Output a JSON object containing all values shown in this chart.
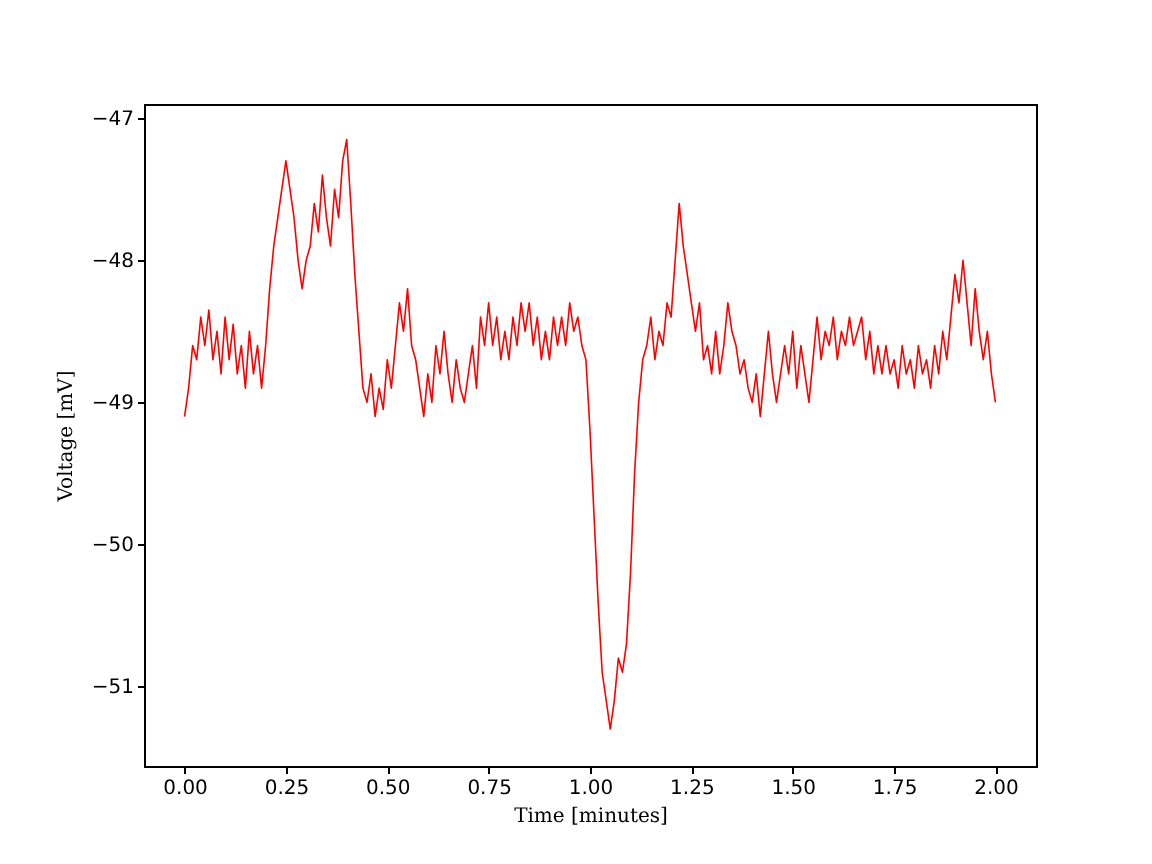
{
  "chart_data": {
    "type": "line",
    "xlabel": "Time [minutes]",
    "ylabel": "Voltage [mV]",
    "xlim": [
      -0.1,
      2.1
    ],
    "ylim": [
      -51.56,
      -46.9
    ],
    "xticks": [
      {
        "value": 0,
        "label": "0.00"
      },
      {
        "value": 0.25,
        "label": "0.25"
      },
      {
        "value": 0.5,
        "label": "0.50"
      },
      {
        "value": 0.75,
        "label": "0.75"
      },
      {
        "value": 1,
        "label": "1.00"
      },
      {
        "value": 1.25,
        "label": "1.25"
      },
      {
        "value": 1.5,
        "label": "1.50"
      },
      {
        "value": 1.75,
        "label": "1.75"
      },
      {
        "value": 2,
        "label": "2.00"
      }
    ],
    "yticks": [
      {
        "value": -51,
        "label": "−51"
      },
      {
        "value": -50,
        "label": "−50"
      },
      {
        "value": -49,
        "label": "−49"
      },
      {
        "value": -48,
        "label": "−48"
      },
      {
        "value": -47,
        "label": "−47"
      }
    ],
    "grid": false,
    "series": [
      {
        "color": "#ff0000",
        "x": [
          0,
          0.01,
          0.02,
          0.03,
          0.04,
          0.05,
          0.06,
          0.07,
          0.08,
          0.09,
          0.1,
          0.11,
          0.12,
          0.13,
          0.14,
          0.15,
          0.16,
          0.17,
          0.18,
          0.19,
          0.2,
          0.21,
          0.22,
          0.23,
          0.24,
          0.25,
          0.26,
          0.27,
          0.28,
          0.29,
          0.3,
          0.31,
          0.32,
          0.33,
          0.34,
          0.35,
          0.36,
          0.37,
          0.38,
          0.39,
          0.4,
          0.41,
          0.42,
          0.43,
          0.44,
          0.45,
          0.46,
          0.47,
          0.48,
          0.49,
          0.5,
          0.51,
          0.52,
          0.53,
          0.54,
          0.55,
          0.56,
          0.57,
          0.58,
          0.59,
          0.6,
          0.61,
          0.62,
          0.63,
          0.64,
          0.65,
          0.66,
          0.67,
          0.68,
          0.69,
          0.7,
          0.71,
          0.72,
          0.73,
          0.74,
          0.75,
          0.76,
          0.77,
          0.78,
          0.79,
          0.8,
          0.81,
          0.82,
          0.83,
          0.84,
          0.85,
          0.86,
          0.87,
          0.88,
          0.89,
          0.9,
          0.91,
          0.92,
          0.93,
          0.94,
          0.95,
          0.96,
          0.97,
          0.98,
          0.99,
          1,
          1.01,
          1.02,
          1.03,
          1.04,
          1.05,
          1.06,
          1.07,
          1.08,
          1.09,
          1.1,
          1.11,
          1.12,
          1.13,
          1.14,
          1.15,
          1.16,
          1.17,
          1.18,
          1.19,
          1.2,
          1.21,
          1.22,
          1.23,
          1.24,
          1.25,
          1.26,
          1.27,
          1.28,
          1.29,
          1.3,
          1.31,
          1.32,
          1.33,
          1.34,
          1.35,
          1.36,
          1.37,
          1.38,
          1.39,
          1.4,
          1.41,
          1.42,
          1.43,
          1.44,
          1.45,
          1.46,
          1.47,
          1.48,
          1.49,
          1.5,
          1.51,
          1.52,
          1.53,
          1.54,
          1.55,
          1.56,
          1.57,
          1.58,
          1.59,
          1.6,
          1.61,
          1.62,
          1.63,
          1.64,
          1.65,
          1.66,
          1.67,
          1.68,
          1.69,
          1.7,
          1.71,
          1.72,
          1.73,
          1.74,
          1.75,
          1.76,
          1.77,
          1.78,
          1.79,
          1.8,
          1.81,
          1.82,
          1.83,
          1.84,
          1.85,
          1.86,
          1.87,
          1.88,
          1.89,
          1.9,
          1.91,
          1.92,
          1.93,
          1.94,
          1.95,
          1.96,
          1.97,
          1.98,
          1.99,
          2
        ],
        "values": [
          -49.1,
          -48.9,
          -48.6,
          -48.7,
          -48.4,
          -48.6,
          -48.35,
          -48.7,
          -48.5,
          -48.8,
          -48.4,
          -48.7,
          -48.45,
          -48.8,
          -48.6,
          -48.9,
          -48.5,
          -48.8,
          -48.6,
          -48.9,
          -48.6,
          -48.2,
          -47.9,
          -47.7,
          -47.5,
          -47.3,
          -47.5,
          -47.7,
          -48.0,
          -48.2,
          -48.0,
          -47.9,
          -47.6,
          -47.8,
          -47.4,
          -47.7,
          -47.9,
          -47.5,
          -47.7,
          -47.3,
          -47.15,
          -47.6,
          -48.1,
          -48.5,
          -48.9,
          -49.0,
          -48.8,
          -49.1,
          -48.9,
          -49.05,
          -48.7,
          -48.9,
          -48.6,
          -48.3,
          -48.5,
          -48.2,
          -48.6,
          -48.7,
          -48.9,
          -49.1,
          -48.8,
          -49.0,
          -48.6,
          -48.8,
          -48.5,
          -48.8,
          -49.0,
          -48.7,
          -48.9,
          -49.0,
          -48.8,
          -48.6,
          -48.9,
          -48.4,
          -48.6,
          -48.3,
          -48.6,
          -48.4,
          -48.7,
          -48.5,
          -48.7,
          -48.4,
          -48.6,
          -48.3,
          -48.5,
          -48.3,
          -48.6,
          -48.4,
          -48.7,
          -48.5,
          -48.7,
          -48.4,
          -48.6,
          -48.4,
          -48.6,
          -48.3,
          -48.5,
          -48.4,
          -48.6,
          -48.7,
          -49.2,
          -49.8,
          -50.4,
          -50.9,
          -51.1,
          -51.3,
          -51.1,
          -50.8,
          -50.9,
          -50.7,
          -50.2,
          -49.5,
          -49.0,
          -48.7,
          -48.6,
          -48.4,
          -48.7,
          -48.5,
          -48.6,
          -48.3,
          -48.4,
          -48.0,
          -47.6,
          -47.9,
          -48.1,
          -48.3,
          -48.5,
          -48.3,
          -48.7,
          -48.6,
          -48.8,
          -48.5,
          -48.8,
          -48.6,
          -48.3,
          -48.5,
          -48.6,
          -48.8,
          -48.7,
          -48.9,
          -49.0,
          -48.8,
          -49.1,
          -48.8,
          -48.5,
          -48.8,
          -49.0,
          -48.8,
          -48.6,
          -48.8,
          -48.5,
          -48.9,
          -48.6,
          -48.8,
          -49.0,
          -48.7,
          -48.4,
          -48.7,
          -48.5,
          -48.6,
          -48.4,
          -48.7,
          -48.5,
          -48.6,
          -48.4,
          -48.6,
          -48.5,
          -48.4,
          -48.7,
          -48.5,
          -48.8,
          -48.6,
          -48.8,
          -48.6,
          -48.8,
          -48.7,
          -48.9,
          -48.6,
          -48.8,
          -48.7,
          -48.9,
          -48.6,
          -48.8,
          -48.7,
          -48.9,
          -48.6,
          -48.8,
          -48.5,
          -48.7,
          -48.4,
          -48.1,
          -48.3,
          -48.0,
          -48.3,
          -48.6,
          -48.2,
          -48.5,
          -48.7,
          -48.5,
          -48.8,
          -49.0
        ]
      }
    ]
  }
}
